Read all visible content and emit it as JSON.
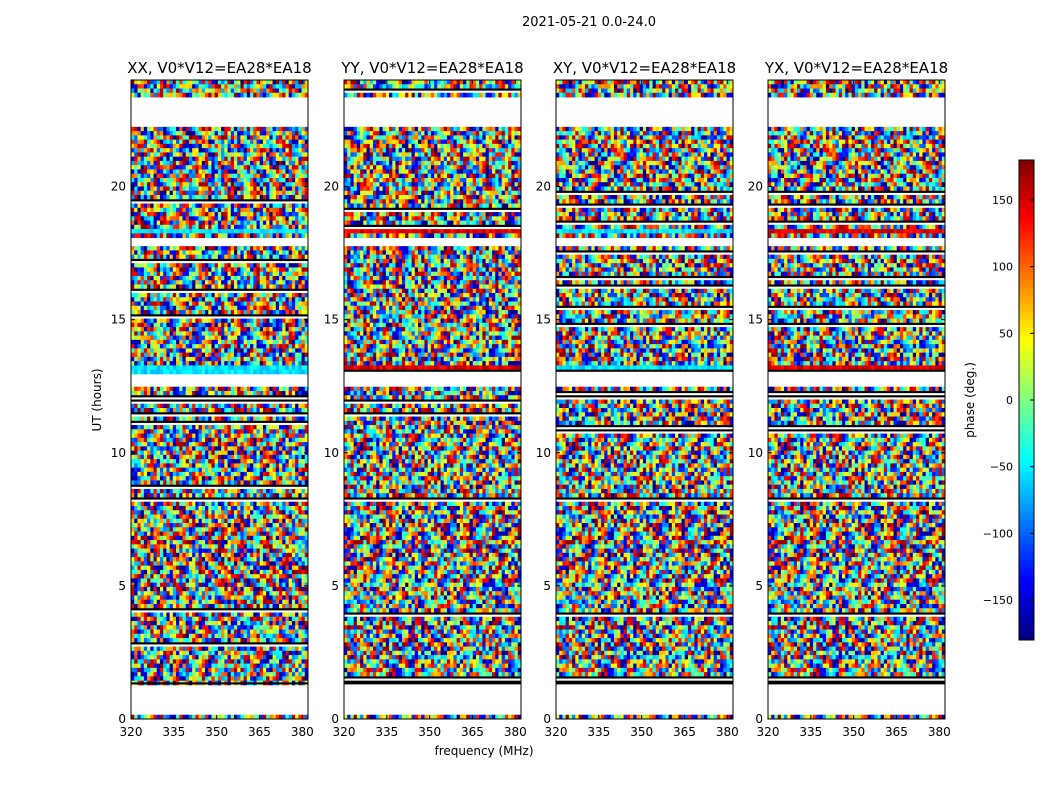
{
  "chart_data": {
    "type": "heatmap",
    "suptitle": "2021-05-21 0.0-24.0",
    "xlabel": "frequency (MHz)",
    "ylabel": "UT (hours)",
    "xlim": [
      320,
      382
    ],
    "ylim": [
      0,
      24
    ],
    "x_ticks": [
      320,
      335,
      350,
      365,
      380
    ],
    "y_ticks": [
      0,
      5,
      10,
      15,
      20
    ],
    "panels": [
      {
        "title": "XX, V0*V12=EA28*EA18",
        "polarization": "XX"
      },
      {
        "title": "YY, V0*V12=EA28*EA18",
        "polarization": "YY"
      },
      {
        "title": "XY, V0*V12=EA28*EA18",
        "polarization": "XY"
      },
      {
        "title": "YX, V0*V12=EA28*EA18",
        "polarization": "YX"
      }
    ],
    "colorbar": {
      "label": "phase (deg.)",
      "range": [
        -180,
        180
      ],
      "ticks": [
        150,
        100,
        50,
        0,
        -50,
        -100,
        -150
      ],
      "tick_labels": [
        "150",
        "100",
        "50",
        "0",
        "−50",
        "−100",
        "−150"
      ],
      "colormap": "jet"
    },
    "data_gaps_hours": [
      [
        0.1,
        1.3
      ],
      [
        12.5,
        12.9
      ],
      [
        17.8,
        18.1
      ],
      [
        22.2,
        23.4
      ]
    ],
    "flagged_hours": [
      [
        18.2,
        18.4
      ],
      [
        13.0,
        13.2
      ]
    ]
  }
}
